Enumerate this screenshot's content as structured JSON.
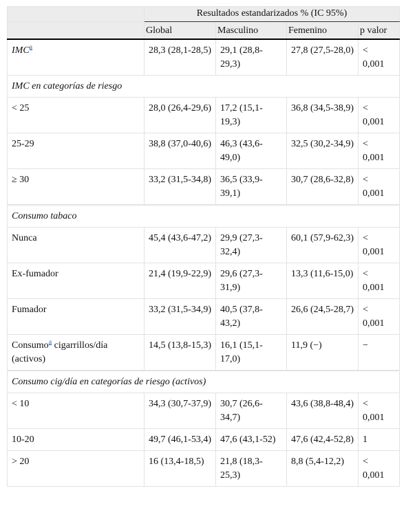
{
  "header": {
    "group": "Resultados estandarizados % (IC 95%)",
    "columns": [
      "Global",
      "Masculino",
      "Femenino",
      "p valor"
    ]
  },
  "rows": [
    {
      "label": "IMC",
      "note": "a",
      "values": [
        "28,3 (28,1-28,5)",
        "29,1 (28,8-29,3)",
        "27,8 (27,5-28,0)",
        "< 0,001"
      ]
    },
    {
      "section": "IMC en categorías de riesgo"
    },
    {
      "label": "< 25",
      "values": [
        "28,0 (26,4-29,6)",
        "17,2 (15,1-19,3)",
        "36,8 (34,5-38,9)",
        "< 0,001"
      ]
    },
    {
      "label": "25-29",
      "values": [
        "38,8 (37,0-40,6)",
        "46,3 (43,6-49,0)",
        "32,5 (30,2-34,9)",
        "< 0,001"
      ]
    },
    {
      "label": "≥ 30",
      "values": [
        "33,2 (31,5-34,8)",
        "36,5 (33,9-39,1)",
        "30,7 (28,6-32,8)",
        "< 0,001"
      ]
    },
    {
      "section": "Consumo tabaco"
    },
    {
      "label": "Nunca",
      "values": [
        "45,4 (43,6-47,2)",
        "29,9 (27,3-32,4)",
        "60,1 (57,9-62,3)",
        "< 0,001"
      ]
    },
    {
      "label": "Ex-fumador",
      "values": [
        "21,4 (19,9-22,9)",
        "29,6 (27,3-31,9)",
        "13,3 (11,6-15,0)",
        "< 0,001"
      ]
    },
    {
      "label": "Fumador",
      "values": [
        "33,2 (31,5-34,9)",
        "40,5 (37,8-43,2)",
        "26,6 (24,5-28,7)",
        "< 0,001"
      ]
    },
    {
      "label": "Consumo",
      "note": "a",
      "label_rest": " cigarrillos/día (activos)",
      "values": [
        "14,5 (13,8-15,3)",
        "16,1 (15,1-17,0)",
        "11,9 (−)",
        "−"
      ]
    },
    {
      "section": "Consumo cig/día en categorías de riesgo (activos)"
    },
    {
      "label": "< 10",
      "values": [
        "34,3 (30,7-37,9)",
        "30,7 (26,6-34,7)",
        "43,6 (38,8-48,4)",
        "< 0,001"
      ]
    },
    {
      "label": "10-20",
      "values": [
        "49,7 (46,1-53,4)",
        "47,6 (43,1-52)",
        "47,6 (42,4-52,8)",
        "1"
      ]
    },
    {
      "label": "> 20",
      "values": [
        "16 (13,4-18,5)",
        "21,8 (18,3-25,3)",
        "8,8 (5,4-12,2)",
        "< 0,001"
      ]
    }
  ]
}
